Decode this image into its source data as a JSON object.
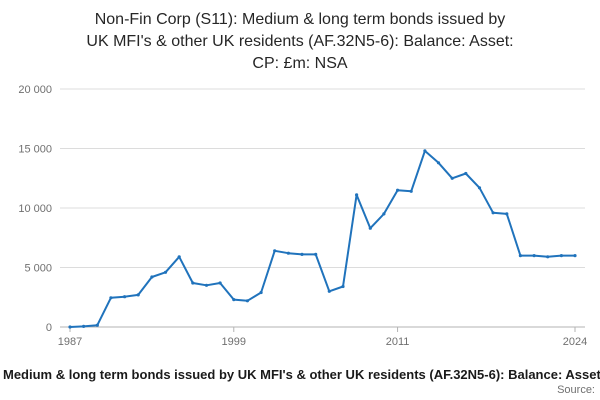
{
  "header": {
    "title_lines": [
      "Non-Fin Corp (S11): Medium & long term bonds issued by",
      "UK MFI's & other UK residents (AF.32N5-6): Balance: Asset:",
      "CP: £m: NSA"
    ]
  },
  "chart_data": {
    "type": "line",
    "title": "Non-Fin Corp (S11): Medium & long term bonds issued by UK MFI's & other UK residents (AF.32N5-6): Balance: Asset: CP: £m: NSA",
    "x": [
      1987,
      1988,
      1989,
      1990,
      1991,
      1992,
      1993,
      1994,
      1995,
      1996,
      1997,
      1998,
      1999,
      2000,
      2001,
      2002,
      2003,
      2004,
      2005,
      2006,
      2007,
      2008,
      2009,
      2010,
      2011,
      2012,
      2013,
      2014,
      2015,
      2016,
      2017,
      2018,
      2019,
      2020,
      2021,
      2022,
      2023,
      2024
    ],
    "values": [
      0,
      50,
      150,
      2450,
      2550,
      2700,
      4200,
      4600,
      5900,
      3700,
      3500,
      3700,
      2300,
      2200,
      2900,
      6400,
      6200,
      6100,
      6100,
      3000,
      3400,
      11100,
      8300,
      9500,
      11500,
      11400,
      14800,
      13800,
      12500,
      12900,
      11700,
      9600,
      9500,
      6000,
      6000,
      5900,
      6000,
      6000
    ],
    "xlabel": "",
    "ylabel": "",
    "ylim": [
      0,
      20000
    ],
    "yticks": [
      0,
      5000,
      10000,
      15000,
      20000
    ],
    "ytick_labels": [
      "0",
      "5 000",
      "10 000",
      "15 000",
      "20 000"
    ],
    "xticks": [
      1987,
      1999,
      2011,
      2024
    ],
    "grid": true,
    "legend": false,
    "line_color": "#2073bc",
    "grid_color": "#dcdcdc",
    "axis_color": "#b3b3b3",
    "tick_label_color": "#707070"
  },
  "footer": {
    "caption": "Medium & long term bonds issued by UK MFI's & other UK residents (AF.32N5-6): Balance: Asset: CP: £m: NSA",
    "source_label": "Source:"
  }
}
